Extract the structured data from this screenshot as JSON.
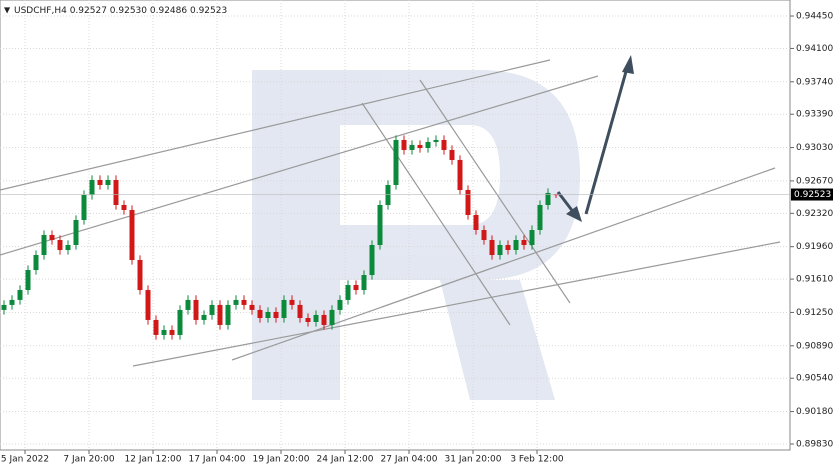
{
  "chart_data": {
    "type": "candlestick",
    "header": {
      "symbol": "USDCHF,H4",
      "open": "0.92527",
      "high": "0.92530",
      "low": "0.92486",
      "close": "0.92523"
    },
    "categories": [
      "5 Jan 2022",
      "7 Jan 20:00",
      "12 Jan 12:00",
      "17 Jan 04:00",
      "19 Jan 20:00",
      "24 Jan 12:00",
      "27 Jan 04:00",
      "31 Jan 20:00",
      "3 Feb 12:00"
    ],
    "open": [
      0.91277,
      0.91331,
      0.91385,
      0.91492,
      0.91708,
      0.9187,
      0.92086,
      0.92032,
      0.91924,
      0.91978,
      0.92248,
      0.92518,
      0.9268,
      0.92626,
      0.9268,
      0.9241,
      0.92356,
      0.91816,
      0.91492,
      0.91169,
      0.91007,
      0.91061,
      0.91007,
      0.91277,
      0.91385,
      0.91169,
      0.91223,
      0.91331,
      0.91115,
      0.91331,
      0.91385,
      0.91331,
      0.91277,
      0.9119,
      0.91255,
      0.9119,
      0.91385,
      0.91331,
      0.9119,
      0.91147,
      0.91223,
      0.91115,
      0.91277,
      0.91385,
      0.91546,
      0.91492,
      0.91654,
      0.91978,
      0.9241,
      0.92626,
      0.93112,
      0.93004,
      0.93058,
      0.93025,
      0.9309,
      0.93112,
      0.93004,
      0.92896,
      0.92572,
      0.92302,
      0.9214,
      0.92032,
      0.9187,
      0.91978,
      0.91924,
      0.92032,
      0.91978,
      0.9214,
      0.9241,
      0.92527
    ],
    "high": [
      0.91381,
      0.91435,
      0.91542,
      0.91758,
      0.9192,
      0.92136,
      0.92136,
      0.92082,
      0.92028,
      0.92298,
      0.92568,
      0.9273,
      0.9273,
      0.9273,
      0.9273,
      0.9246,
      0.92406,
      0.91866,
      0.91542,
      0.91219,
      0.91111,
      0.91111,
      0.91327,
      0.91435,
      0.91435,
      0.91273,
      0.91381,
      0.91381,
      0.91381,
      0.91435,
      0.91435,
      0.91381,
      0.91327,
      0.91305,
      0.91305,
      0.91435,
      0.91435,
      0.91381,
      0.9124,
      0.91273,
      0.91273,
      0.91327,
      0.91435,
      0.91596,
      0.91596,
      0.91704,
      0.92028,
      0.9246,
      0.92676,
      0.93162,
      0.93162,
      0.93108,
      0.93108,
      0.9314,
      0.93162,
      0.93162,
      0.93054,
      0.92946,
      0.92622,
      0.92352,
      0.9219,
      0.92082,
      0.92028,
      0.92028,
      0.92082,
      0.92082,
      0.9219,
      0.9246,
      0.9259,
      0.9253
    ],
    "low": [
      0.91227,
      0.91281,
      0.91335,
      0.91442,
      0.91658,
      0.9182,
      0.91982,
      0.91874,
      0.91874,
      0.91928,
      0.92198,
      0.92468,
      0.92576,
      0.92576,
      0.9236,
      0.92306,
      0.91766,
      0.91442,
      0.91119,
      0.90957,
      0.90957,
      0.90957,
      0.90957,
      0.91227,
      0.91119,
      0.91119,
      0.91173,
      0.91065,
      0.91065,
      0.91281,
      0.91281,
      0.91227,
      0.9114,
      0.9114,
      0.9114,
      0.9114,
      0.91281,
      0.9114,
      0.91097,
      0.91097,
      0.91065,
      0.91065,
      0.91227,
      0.91335,
      0.91442,
      0.91442,
      0.91604,
      0.91928,
      0.9236,
      0.92576,
      0.92954,
      0.92954,
      0.92975,
      0.92975,
      0.9304,
      0.92954,
      0.92846,
      0.92522,
      0.92252,
      0.9209,
      0.91982,
      0.9182,
      0.9182,
      0.91874,
      0.91874,
      0.91928,
      0.91928,
      0.9209,
      0.9236,
      0.92486
    ],
    "close": [
      0.91331,
      0.91385,
      0.91492,
      0.91708,
      0.9187,
      0.92086,
      0.92032,
      0.91924,
      0.91978,
      0.92248,
      0.92518,
      0.9268,
      0.92626,
      0.9268,
      0.9241,
      0.92356,
      0.91816,
      0.91492,
      0.91169,
      0.91007,
      0.91061,
      0.91007,
      0.91277,
      0.91385,
      0.91169,
      0.91223,
      0.91331,
      0.91115,
      0.91331,
      0.91385,
      0.91331,
      0.91277,
      0.9119,
      0.91255,
      0.9119,
      0.91385,
      0.91331,
      0.9119,
      0.91147,
      0.91223,
      0.91115,
      0.91277,
      0.91385,
      0.91546,
      0.91492,
      0.91654,
      0.91978,
      0.9241,
      0.92626,
      0.93112,
      0.93004,
      0.93058,
      0.93025,
      0.9309,
      0.93112,
      0.93004,
      0.92896,
      0.92572,
      0.92302,
      0.9214,
      0.92032,
      0.9187,
      0.91978,
      0.91924,
      0.92032,
      0.91978,
      0.9214,
      0.9241,
      0.9254,
      0.92523
    ],
    "up_color": "#0b8a3c",
    "down_color": "#d01818",
    "ylim": [
      0.89765,
      0.94623
    ],
    "yticks": [
      {
        "value": 0.9445,
        "label": "0.94450"
      },
      {
        "value": 0.941,
        "label": "0.94100"
      },
      {
        "value": 0.9374,
        "label": "0.93740"
      },
      {
        "value": 0.9339,
        "label": "0.93390"
      },
      {
        "value": 0.9303,
        "label": "0.93030"
      },
      {
        "value": 0.9267,
        "label": "0.92670"
      },
      {
        "value": 0.9232,
        "label": "0.92320"
      },
      {
        "value": 0.9196,
        "label": "0.91960"
      },
      {
        "value": 0.9161,
        "label": "0.91610"
      },
      {
        "value": 0.9125,
        "label": "0.91250"
      },
      {
        "value": 0.9089,
        "label": "0.90890"
      },
      {
        "value": 0.9054,
        "label": "0.90540"
      },
      {
        "value": 0.9018,
        "label": "0.90180"
      },
      {
        "value": 0.8983,
        "label": "0.89830"
      }
    ],
    "last_price": {
      "value": 0.92523,
      "label": "0.92523"
    },
    "grid": true
  }
}
